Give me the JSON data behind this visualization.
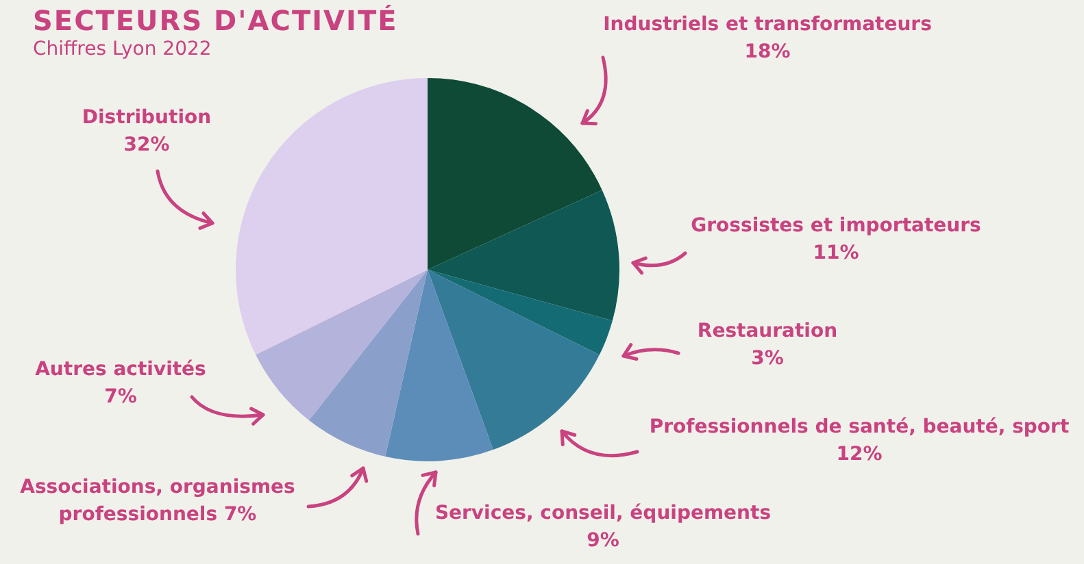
{
  "chart_data": {
    "type": "pie",
    "title": "SECTEURS D'ACTIVITÉ",
    "subtitle": "Chiffres Lyon 2022",
    "categories": [
      "Industriels et transformateurs",
      "Grossistes et importateurs",
      "Restauration",
      "Professionnels de santé, beauté, sport",
      "Services, conseil, équipements",
      "Associations, organismes professionnels",
      "Autres activités",
      "Distribution"
    ],
    "values": [
      18,
      11,
      3,
      12,
      9,
      7,
      7,
      32
    ],
    "colors": [
      "#0e4a36",
      "#0f5853",
      "#156b73",
      "#347b98",
      "#5b8db8",
      "#8b9fcb",
      "#b3b3dc",
      "#ddcfee"
    ],
    "value_labels": [
      "18%",
      "11%",
      "3%",
      "12%",
      "9%",
      "7%",
      "7%",
      "32%"
    ]
  }
}
